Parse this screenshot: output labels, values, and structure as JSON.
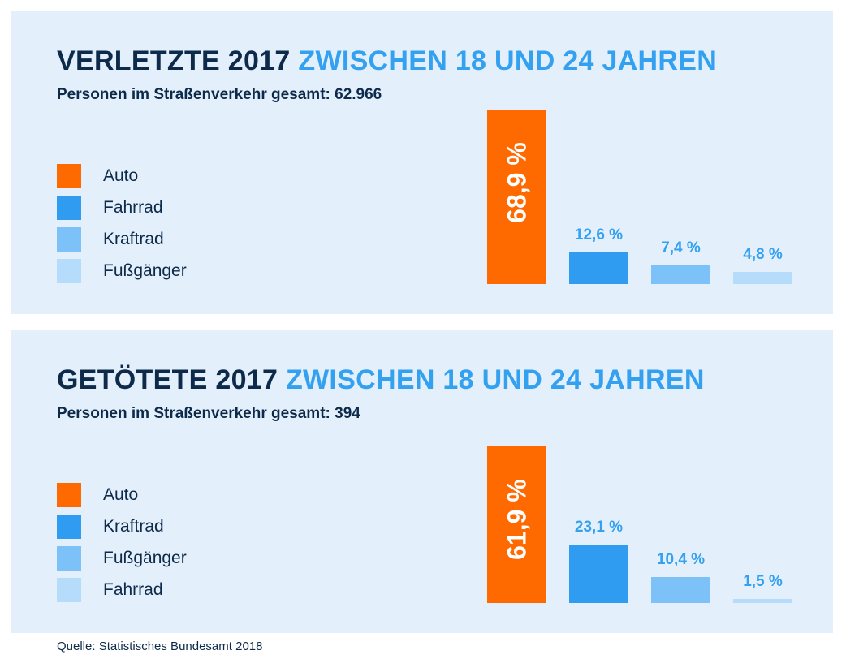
{
  "colors": {
    "auto": "#ff6a00",
    "blue1": "#2f9cf2",
    "blue2": "#7cc2f9",
    "blue3": "#b5dcfb",
    "title_dark": "#0d2a4a",
    "title_light": "#33a0f0"
  },
  "source": "Quelle: Statistisches Bundesamt 2018",
  "chart_data": [
    {
      "type": "bar",
      "title_part1": "VERLETZTE 2017",
      "title_part2": "ZWISCHEN 18 UND 24 JAHREN",
      "subtitle": "Personen im Straßenverkehr gesamt: 62.966",
      "categories": [
        "Auto",
        "Fahrrad",
        "Kraftrad",
        "Fußgänger"
      ],
      "values": [
        68.9,
        12.6,
        7.4,
        4.8
      ],
      "value_labels": [
        "68,9 %",
        "12,6 %",
        "7,4 %",
        "4,8 %"
      ],
      "colors": [
        "#ff6a00",
        "#2f9cf2",
        "#7cc2f9",
        "#b5dcfb"
      ],
      "legend": "left",
      "grid": false
    },
    {
      "type": "bar",
      "title_part1": "GETÖTETE 2017",
      "title_part2": "ZWISCHEN 18 UND 24 JAHREN",
      "subtitle": "Personen im Straßenverkehr gesamt: 394",
      "categories": [
        "Auto",
        "Kraftrad",
        "Fußgänger",
        "Fahrrad"
      ],
      "values": [
        61.9,
        23.1,
        10.4,
        1.5
      ],
      "value_labels": [
        "61,9 %",
        "23,1 %",
        "10,4 %",
        "1,5 %"
      ],
      "colors": [
        "#ff6a00",
        "#2f9cf2",
        "#7cc2f9",
        "#b5dcfb"
      ],
      "legend": "left",
      "grid": false
    }
  ]
}
